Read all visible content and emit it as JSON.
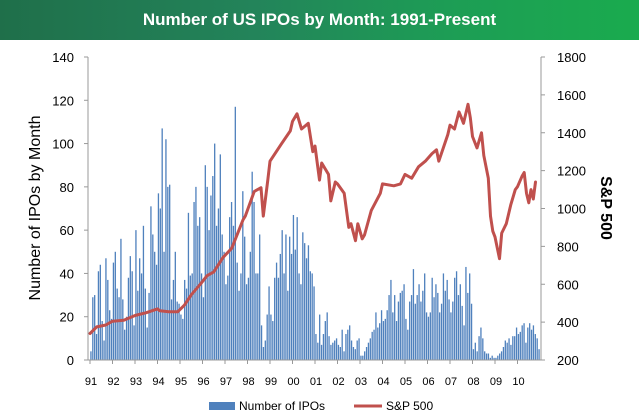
{
  "chart_data": {
    "type": "bar+line",
    "title": "Number of US IPOs by Month: 1991-Present",
    "ylabel": "Number of IPOs by Month",
    "ylabel_right": "S&P 500",
    "ylim": [
      0,
      140
    ],
    "ylim_right": [
      200,
      1800
    ],
    "y_ticks": [
      "0",
      "20",
      "40",
      "60",
      "80",
      "100",
      "120",
      "140"
    ],
    "y_ticks_right": [
      "200",
      "400",
      "600",
      "800",
      "1000",
      "1200",
      "1400",
      "1600",
      "1800"
    ],
    "x_ticks": [
      "91",
      "92",
      "93",
      "94",
      "95",
      "96",
      "97",
      "98",
      "99",
      "00",
      "01",
      "02",
      "03",
      "04",
      "05",
      "06",
      "07",
      "08",
      "09",
      "10"
    ],
    "start_year": 1991,
    "series": [
      {
        "name": "Number of IPOs",
        "type": "bar",
        "color": "#4f81bd",
        "values_by_year": [
          [
            4,
            29,
            30,
            12,
            41,
            44,
            18,
            9,
            47,
            37,
            23,
            19
          ],
          [
            45,
            50,
            33,
            29,
            56,
            28,
            14,
            20,
            38,
            48,
            41,
            16
          ],
          [
            60,
            32,
            47,
            40,
            62,
            33,
            15,
            31,
            71,
            58,
            50,
            44
          ],
          [
            77,
            70,
            107,
            50,
            102,
            80,
            81,
            28,
            37,
            50,
            27,
            26
          ],
          [
            21,
            19,
            37,
            33,
            68,
            39,
            40,
            73,
            80,
            62,
            66,
            40
          ],
          [
            29,
            90,
            80,
            60,
            76,
            85,
            100,
            62,
            70,
            95,
            58,
            50
          ],
          [
            35,
            39,
            66,
            73,
            62,
            117,
            45,
            32,
            40,
            78,
            57,
            35
          ],
          [
            38,
            50,
            87,
            73,
            40,
            40,
            58,
            16,
            6,
            9,
            21,
            34
          ],
          [
            21,
            18,
            38,
            45,
            38,
            49,
            60,
            40,
            58,
            32,
            57,
            49
          ],
          [
            67,
            51,
            66,
            40,
            35,
            59,
            54,
            47,
            53,
            41,
            40,
            34
          ],
          [
            12,
            8,
            21,
            7,
            12,
            18,
            22,
            11,
            7,
            8,
            9,
            10
          ],
          [
            7,
            6,
            14,
            4,
            12,
            14,
            16,
            9,
            6,
            5,
            9,
            10
          ],
          [
            2,
            2,
            4,
            6,
            8,
            10,
            13,
            14,
            22,
            15,
            17,
            23
          ],
          [
            18,
            19,
            23,
            30,
            37,
            22,
            30,
            18,
            27,
            31,
            32,
            35
          ],
          [
            19,
            14,
            27,
            30,
            42,
            26,
            30,
            35,
            27,
            32,
            40,
            22
          ],
          [
            20,
            22,
            38,
            29,
            35,
            31,
            22,
            26,
            40,
            32,
            37,
            28
          ],
          [
            22,
            27,
            38,
            41,
            30,
            35,
            25,
            16,
            43,
            31,
            40,
            26
          ],
          [
            5,
            8,
            4,
            11,
            15,
            10,
            4,
            3,
            3,
            1,
            2,
            1
          ],
          [
            1,
            2,
            3,
            4,
            6,
            9,
            8,
            10,
            7,
            11,
            11,
            15
          ],
          [
            12,
            13,
            16,
            17,
            8,
            15,
            17,
            14,
            16,
            12,
            10,
            5
          ]
        ]
      },
      {
        "name": "S&P 500",
        "type": "line",
        "color": "#c0504d",
        "axis": "right",
        "points": [
          [
            1991.0,
            340
          ],
          [
            1991.3,
            375
          ],
          [
            1991.7,
            385
          ],
          [
            1992.0,
            405
          ],
          [
            1992.5,
            410
          ],
          [
            1993.0,
            435
          ],
          [
            1993.5,
            450
          ],
          [
            1994.0,
            470
          ],
          [
            1994.1,
            460
          ],
          [
            1994.5,
            455
          ],
          [
            1994.9,
            455
          ],
          [
            1995.2,
            490
          ],
          [
            1995.5,
            545
          ],
          [
            1995.9,
            600
          ],
          [
            1996.2,
            645
          ],
          [
            1996.5,
            665
          ],
          [
            1996.9,
            740
          ],
          [
            1997.3,
            790
          ],
          [
            1997.8,
            940
          ],
          [
            1997.9,
            960
          ],
          [
            1998.3,
            1090
          ],
          [
            1998.6,
            1110
          ],
          [
            1998.7,
            960
          ],
          [
            1998.9,
            1150
          ],
          [
            1999.0,
            1250
          ],
          [
            1999.5,
            1340
          ],
          [
            1999.9,
            1410
          ],
          [
            2000.0,
            1460
          ],
          [
            2000.2,
            1500
          ],
          [
            2000.4,
            1420
          ],
          [
            2000.7,
            1450
          ],
          [
            2000.9,
            1300
          ],
          [
            2001.0,
            1330
          ],
          [
            2001.2,
            1150
          ],
          [
            2001.3,
            1240
          ],
          [
            2001.6,
            1180
          ],
          [
            2001.7,
            1040
          ],
          [
            2001.9,
            1140
          ],
          [
            2002.0,
            1130
          ],
          [
            2002.3,
            1080
          ],
          [
            2002.5,
            900
          ],
          [
            2002.6,
            920
          ],
          [
            2002.8,
            830
          ],
          [
            2002.9,
            920
          ],
          [
            2003.1,
            840
          ],
          [
            2003.2,
            860
          ],
          [
            2003.5,
            990
          ],
          [
            2003.9,
            1080
          ],
          [
            2004.0,
            1130
          ],
          [
            2004.5,
            1120
          ],
          [
            2004.8,
            1130
          ],
          [
            2005.0,
            1180
          ],
          [
            2005.3,
            1160
          ],
          [
            2005.6,
            1220
          ],
          [
            2005.9,
            1250
          ],
          [
            2006.2,
            1290
          ],
          [
            2006.4,
            1310
          ],
          [
            2006.5,
            1250
          ],
          [
            2006.9,
            1390
          ],
          [
            2007.0,
            1440
          ],
          [
            2007.2,
            1420
          ],
          [
            2007.4,
            1510
          ],
          [
            2007.5,
            1480
          ],
          [
            2007.6,
            1450
          ],
          [
            2007.8,
            1550
          ],
          [
            2007.9,
            1480
          ],
          [
            2008.0,
            1380
          ],
          [
            2008.2,
            1320
          ],
          [
            2008.4,
            1400
          ],
          [
            2008.5,
            1280
          ],
          [
            2008.7,
            1160
          ],
          [
            2008.8,
            960
          ],
          [
            2008.9,
            880
          ],
          [
            2009.0,
            850
          ],
          [
            2009.2,
            735
          ],
          [
            2009.3,
            870
          ],
          [
            2009.5,
            920
          ],
          [
            2009.7,
            1020
          ],
          [
            2009.9,
            1100
          ],
          [
            2010.0,
            1115
          ],
          [
            2010.2,
            1170
          ],
          [
            2010.3,
            1190
          ],
          [
            2010.4,
            1080
          ],
          [
            2010.5,
            1030
          ],
          [
            2010.6,
            1100
          ],
          [
            2010.7,
            1050
          ],
          [
            2010.8,
            1140
          ]
        ]
      }
    ],
    "legend": "bottom"
  }
}
